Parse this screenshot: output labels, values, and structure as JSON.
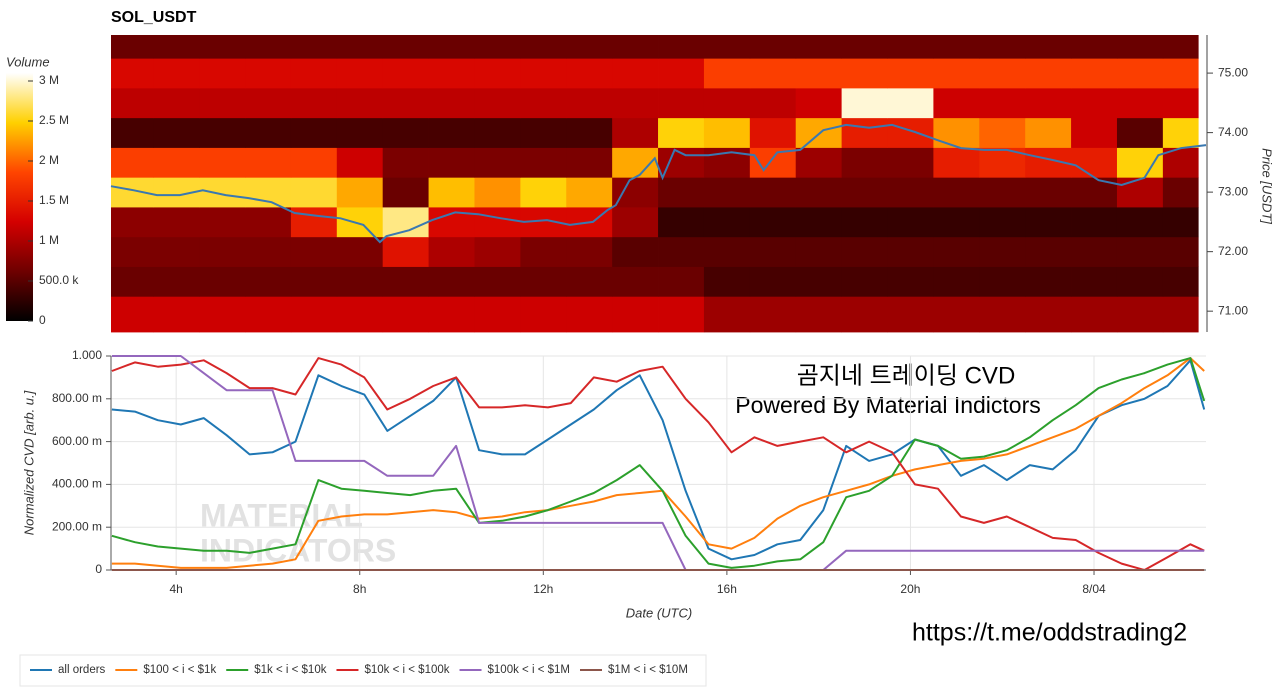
{
  "chart_data": [
    {
      "type": "heatmap",
      "title": "SOL_USDT",
      "colorbar_label": "Volume",
      "y2label": "Price [USDT]",
      "xlim": [
        2.58,
        26.44
      ],
      "y2lim": [
        70.65,
        75.64
      ],
      "y2ticks": [
        {
          "value": 71,
          "label": "71.00"
        },
        {
          "value": 72,
          "label": "72.00"
        },
        {
          "value": 73,
          "label": "73.00"
        },
        {
          "value": 74,
          "label": "74.00"
        },
        {
          "value": 75,
          "label": "75.00"
        }
      ],
      "zlim": [
        0,
        3100000
      ],
      "zticks": [
        0,
        {
          "value": 500000,
          "label": "500.0 k"
        },
        {
          "value": 1000000,
          "label": "1 M"
        },
        {
          "value": 1500000,
          "label": "1.5 M"
        },
        {
          "value": 2000000,
          "label": "2 M"
        },
        {
          "value": 2500000,
          "label": "2.5 M"
        },
        {
          "value": 3000000,
          "label": "3 M"
        }
      ],
      "colorscale": [
        "#000000",
        "#6e0000",
        "#d40000",
        "#ff4500",
        "#ffd000",
        "#ffffff"
      ],
      "x_bins": [
        2.58,
        3.5,
        4.5,
        5.5,
        6.5,
        7.5,
        8.5,
        9.5,
        10.5,
        11.5,
        12.5,
        13.5,
        14.5,
        15.5,
        16.5,
        17.5,
        18.5,
        19.5,
        20.5,
        21.5,
        22.5,
        23.5,
        24.5,
        25.5,
        26.27
      ],
      "y_bins": [
        70.65,
        71.25,
        71.75,
        72.25,
        72.75,
        73.25,
        73.75,
        74.25,
        74.75,
        75.25,
        75.64
      ],
      "z": [
        [
          1200000,
          1200000,
          1200000,
          1200000,
          1200000,
          1200000,
          1200000,
          1200000,
          1200000,
          1200000,
          1200000,
          1200000,
          1200000,
          900000,
          900000,
          900000,
          900000,
          900000,
          900000,
          900000,
          900000,
          900000,
          900000,
          900000
        ],
        [
          600000,
          600000,
          600000,
          600000,
          600000,
          600000,
          600000,
          600000,
          600000,
          600000,
          600000,
          600000,
          600000,
          400000,
          400000,
          400000,
          400000,
          400000,
          400000,
          400000,
          400000,
          400000,
          400000,
          400000
        ],
        [
          700000,
          700000,
          700000,
          700000,
          700000,
          700000,
          1400000,
          1000000,
          900000,
          700000,
          700000,
          500000,
          500000,
          500000,
          500000,
          500000,
          500000,
          500000,
          500000,
          500000,
          500000,
          500000,
          500000,
          500000
        ],
        [
          800000,
          800000,
          800000,
          800000,
          1500000,
          2500000,
          2800000,
          1300000,
          1300000,
          1300000,
          1300000,
          900000,
          300000,
          300000,
          300000,
          300000,
          300000,
          300000,
          300000,
          300000,
          300000,
          300000,
          300000,
          300000
        ],
        [
          2600000,
          2600000,
          2600000,
          2600000,
          2600000,
          2300000,
          600000,
          2400000,
          2200000,
          2500000,
          2300000,
          800000,
          600000,
          600000,
          600000,
          600000,
          600000,
          600000,
          600000,
          600000,
          600000,
          600000,
          1000000,
          600000
        ],
        [
          1800000,
          1800000,
          1800000,
          1800000,
          1800000,
          1200000,
          700000,
          700000,
          700000,
          700000,
          700000,
          2300000,
          900000,
          800000,
          1800000,
          900000,
          700000,
          700000,
          1500000,
          1600000,
          1500000,
          1500000,
          2500000,
          1000000
        ],
        [
          400000,
          400000,
          400000,
          400000,
          400000,
          400000,
          400000,
          400000,
          400000,
          400000,
          400000,
          1000000,
          2500000,
          2400000,
          1400000,
          2300000,
          1500000,
          1500000,
          2200000,
          2000000,
          2200000,
          1200000,
          500000,
          2500000
        ],
        [
          1100000,
          1100000,
          1100000,
          1100000,
          1100000,
          1100000,
          1100000,
          1100000,
          1100000,
          1100000,
          1100000,
          1100000,
          1100000,
          1100000,
          1100000,
          1200000,
          3000000,
          3000000,
          1200000,
          1200000,
          1200000,
          1200000,
          1200000,
          1200000
        ],
        [
          1300000,
          1300000,
          1300000,
          1300000,
          1300000,
          1300000,
          1300000,
          1300000,
          1300000,
          1300000,
          1300000,
          1300000,
          1300000,
          1800000,
          1800000,
          1800000,
          1800000,
          1800000,
          1800000,
          1800000,
          1800000,
          1800000,
          1800000,
          1800000
        ],
        [
          600000,
          600000,
          600000,
          600000,
          600000,
          600000,
          600000,
          600000,
          600000,
          600000,
          600000,
          600000,
          600000,
          600000,
          600000,
          600000,
          600000,
          600000,
          600000,
          600000,
          600000,
          600000,
          600000,
          600000
        ]
      ],
      "series": [
        {
          "color": "#3a78b0",
          "axis": "y2",
          "x": [
            2.58,
            3.08,
            3.58,
            4.08,
            4.58,
            5.08,
            5.58,
            6.08,
            6.58,
            7.08,
            7.58,
            8.08,
            8.44,
            8.58,
            9.08,
            9.58,
            10.08,
            10.58,
            11.08,
            11.58,
            12.08,
            12.58,
            13.08,
            13.4,
            13.58,
            13.88,
            14.1,
            14.43,
            14.6,
            14.86,
            15.1,
            15.6,
            16.1,
            16.6,
            16.8,
            17.1,
            17.6,
            18.1,
            18.6,
            19.1,
            19.6,
            20.1,
            20.6,
            21.1,
            21.6,
            22.1,
            22.6,
            23.1,
            23.6,
            24.1,
            24.6,
            25.1,
            25.4,
            25.9,
            26.44
          ],
          "values": [
            73.1,
            73.03,
            72.95,
            72.95,
            73.03,
            72.95,
            72.9,
            72.83,
            72.65,
            72.6,
            72.56,
            72.45,
            72.16,
            72.26,
            72.36,
            72.53,
            72.66,
            72.63,
            72.56,
            72.5,
            72.53,
            72.45,
            72.5,
            72.7,
            72.78,
            73.2,
            73.29,
            73.57,
            73.24,
            73.71,
            73.62,
            73.62,
            73.67,
            73.62,
            73.37,
            73.67,
            73.71,
            74.04,
            74.13,
            74.08,
            74.13,
            74.01,
            73.87,
            73.74,
            73.71,
            73.71,
            73.62,
            73.54,
            73.45,
            73.2,
            73.12,
            73.24,
            73.62,
            73.74,
            73.79
          ]
        }
      ]
    },
    {
      "type": "line",
      "ylabel": "Normalized CVD [arb. u.]",
      "xlabel": "Date (UTC)",
      "grid": true,
      "legend": "bottom-left",
      "xlim": [
        2.58,
        26.44
      ],
      "ylim": [
        0,
        1
      ],
      "xticks": [
        {
          "value": 4,
          "label": "4h"
        },
        {
          "value": 8,
          "label": "8h"
        },
        {
          "value": 12,
          "label": "12h"
        },
        {
          "value": 16,
          "label": "16h"
        },
        {
          "value": 20,
          "label": "20h"
        },
        {
          "value": 24,
          "label": "8/04"
        }
      ],
      "yticks": [
        0,
        {
          "value": 0.2,
          "label": "200.00 m"
        },
        {
          "value": 0.4,
          "label": "400.00 m"
        },
        {
          "value": 0.6,
          "label": "600.00 m"
        },
        {
          "value": 0.8,
          "label": "800.00 m"
        },
        {
          "value": 1,
          "label": "1.000"
        }
      ],
      "annotations": [
        "곰지네 트레이딩 CVD",
        "Powered By Material Indictors"
      ],
      "watermark": [
        "MATERIAL",
        "INDICATORS"
      ],
      "footer_link": "https://t.me/oddstrading2",
      "x": [
        2.6,
        3.1,
        3.6,
        4.1,
        4.6,
        5.1,
        5.6,
        6.1,
        6.6,
        7.1,
        7.6,
        8.1,
        8.6,
        9.1,
        9.6,
        10.1,
        10.6,
        11.1,
        11.6,
        12.1,
        12.6,
        13.1,
        13.6,
        14.1,
        14.6,
        15.1,
        15.6,
        16.1,
        16.6,
        17.1,
        17.6,
        18.1,
        18.6,
        19.1,
        19.6,
        20.1,
        20.6,
        21.1,
        21.6,
        22.1,
        22.6,
        23.1,
        23.6,
        24.1,
        24.6,
        25.1,
        25.6,
        26.1,
        26.4
      ],
      "series": [
        {
          "name": "all orders",
          "color": "#1f77b4",
          "values": [
            0.75,
            0.74,
            0.7,
            0.68,
            0.71,
            0.63,
            0.54,
            0.55,
            0.6,
            0.91,
            0.86,
            0.82,
            0.65,
            0.72,
            0.79,
            0.9,
            0.56,
            0.54,
            0.54,
            0.61,
            0.68,
            0.75,
            0.84,
            0.91,
            0.7,
            0.37,
            0.1,
            0.05,
            0.07,
            0.12,
            0.14,
            0.28,
            0.58,
            0.51,
            0.54,
            0.61,
            0.58,
            0.44,
            0.49,
            0.42,
            0.49,
            0.47,
            0.56,
            0.72,
            0.77,
            0.8,
            0.86,
            0.98,
            0.75
          ]
        },
        {
          "name": "$100 < i < $1k",
          "color": "#ff7f0e",
          "values": [
            0.03,
            0.03,
            0.02,
            0.01,
            0.01,
            0.01,
            0.02,
            0.03,
            0.05,
            0.23,
            0.25,
            0.26,
            0.26,
            0.27,
            0.28,
            0.27,
            0.24,
            0.25,
            0.27,
            0.28,
            0.3,
            0.32,
            0.35,
            0.36,
            0.37,
            0.25,
            0.12,
            0.1,
            0.15,
            0.24,
            0.3,
            0.34,
            0.37,
            0.4,
            0.44,
            0.47,
            0.49,
            0.51,
            0.52,
            0.54,
            0.58,
            0.62,
            0.66,
            0.72,
            0.78,
            0.85,
            0.91,
            0.99,
            0.93
          ]
        },
        {
          "name": "$1k < i < $10k",
          "color": "#2ca02c",
          "values": [
            0.16,
            0.13,
            0.11,
            0.1,
            0.09,
            0.09,
            0.08,
            0.1,
            0.12,
            0.42,
            0.38,
            0.37,
            0.36,
            0.35,
            0.37,
            0.38,
            0.22,
            0.23,
            0.25,
            0.28,
            0.32,
            0.36,
            0.42,
            0.49,
            0.37,
            0.16,
            0.03,
            0.01,
            0.02,
            0.04,
            0.05,
            0.13,
            0.34,
            0.37,
            0.44,
            0.61,
            0.58,
            0.52,
            0.53,
            0.56,
            0.62,
            0.7,
            0.77,
            0.85,
            0.89,
            0.92,
            0.96,
            0.99,
            0.79
          ]
        },
        {
          "name": "$10k < i < $100k",
          "color": "#d62728",
          "values": [
            0.93,
            0.97,
            0.95,
            0.96,
            0.98,
            0.92,
            0.85,
            0.85,
            0.82,
            0.99,
            0.96,
            0.9,
            0.75,
            0.8,
            0.86,
            0.9,
            0.76,
            0.76,
            0.77,
            0.76,
            0.78,
            0.9,
            0.88,
            0.93,
            0.95,
            0.8,
            0.69,
            0.55,
            0.62,
            0.58,
            0.6,
            0.62,
            0.55,
            0.6,
            0.55,
            0.4,
            0.38,
            0.25,
            0.22,
            0.25,
            0.2,
            0.15,
            0.14,
            0.08,
            0.03,
            0,
            0.06,
            0.12,
            0.09
          ]
        },
        {
          "name": "$100k < i < $1M",
          "color": "#9467bd",
          "values": [
            1,
            1,
            1,
            1,
            0.92,
            0.84,
            0.84,
            0.84,
            0.51,
            0.51,
            0.51,
            0.51,
            0.44,
            0.44,
            0.44,
            0.58,
            0.22,
            0.22,
            0.22,
            0.22,
            0.22,
            0.22,
            0.22,
            0.22,
            0.22,
            0,
            0,
            0,
            0,
            0,
            0,
            0,
            0.09,
            0.09,
            0.09,
            0.09,
            0.09,
            0.09,
            0.09,
            0.09,
            0.09,
            0.09,
            0.09,
            0.09,
            0.09,
            0.09,
            0.09,
            0.09,
            0.09
          ]
        },
        {
          "name": "$1M < i < $10M",
          "color": "#8c564b",
          "values": [
            0,
            0,
            0,
            0,
            0,
            0,
            0,
            0,
            0,
            0,
            0,
            0,
            0,
            0,
            0,
            0,
            0,
            0,
            0,
            0,
            0,
            0,
            0,
            0,
            0,
            0,
            0,
            0,
            0,
            0,
            0,
            0,
            0,
            0,
            0,
            0,
            0,
            0,
            0,
            0,
            0,
            0,
            0,
            0,
            0,
            0,
            0,
            0,
            0
          ]
        }
      ]
    }
  ]
}
